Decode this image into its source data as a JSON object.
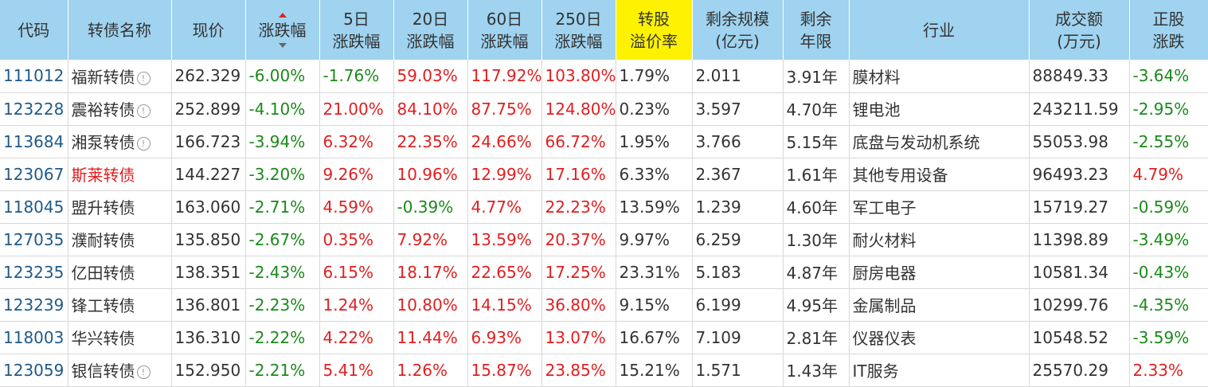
{
  "headers": {
    "code": "代码",
    "name": "转债名称",
    "price": "现价",
    "change": "涨跌幅",
    "d5": [
      "5日",
      "涨跌幅"
    ],
    "d20": [
      "20日",
      "涨跌幅"
    ],
    "d60": [
      "60日",
      "涨跌幅"
    ],
    "d250": [
      "250日",
      "涨跌幅"
    ],
    "premium": [
      "转股",
      "溢价率"
    ],
    "scale": [
      "剩余规模",
      "(亿元)"
    ],
    "years": [
      "剩余",
      "年限"
    ],
    "industry": "行业",
    "volume": [
      "成交额",
      "(万元)"
    ],
    "stock": [
      "正股",
      "涨跌"
    ]
  },
  "colors": {
    "header_bg": "#9fd3ef",
    "highlight": "#fff200",
    "up": "#e02020",
    "down": "#1a8a1a",
    "code": "#1f5a8a"
  },
  "rows": [
    {
      "code": "111012",
      "name": "福新转债",
      "info": true,
      "price": "262.329",
      "change": "-6.00%",
      "d5": "-1.76%",
      "d20": "59.03%",
      "d60": "117.92%",
      "d250": "103.80%",
      "premium": "1.79%",
      "scale": "2.011",
      "years": "3.91年",
      "industry": "膜材料",
      "volume": "88849.33",
      "stock": "-3.64%"
    },
    {
      "code": "123228",
      "name": "震裕转债",
      "info": true,
      "price": "252.899",
      "change": "-4.10%",
      "d5": "21.00%",
      "d20": "84.10%",
      "d60": "87.75%",
      "d250": "124.80%",
      "premium": "0.23%",
      "scale": "3.597",
      "years": "4.70年",
      "industry": "锂电池",
      "volume": "243211.59",
      "stock": "-2.95%"
    },
    {
      "code": "113684",
      "name": "湘泵转债",
      "info": true,
      "price": "166.723",
      "change": "-3.94%",
      "d5": "6.32%",
      "d20": "22.35%",
      "d60": "24.66%",
      "d250": "66.72%",
      "premium": "1.95%",
      "scale": "3.766",
      "years": "5.15年",
      "industry": "底盘与发动机系统",
      "volume": "55053.98",
      "stock": "-2.55%"
    },
    {
      "code": "123067",
      "name": "斯莱转债",
      "info": false,
      "red": true,
      "price": "144.227",
      "change": "-3.20%",
      "d5": "9.26%",
      "d20": "10.96%",
      "d60": "12.99%",
      "d250": "17.16%",
      "premium": "6.33%",
      "scale": "2.367",
      "years": "1.61年",
      "industry": "其他专用设备",
      "volume": "96493.23",
      "stock": "4.79%"
    },
    {
      "code": "118045",
      "name": "盟升转债",
      "info": false,
      "price": "163.060",
      "change": "-2.71%",
      "d5": "4.59%",
      "d20": "-0.39%",
      "d60": "4.77%",
      "d250": "22.23%",
      "premium": "13.59%",
      "scale": "1.239",
      "years": "4.60年",
      "industry": "军工电子",
      "volume": "15719.27",
      "stock": "-0.59%"
    },
    {
      "code": "127035",
      "name": "濮耐转债",
      "info": false,
      "price": "135.850",
      "change": "-2.67%",
      "d5": "0.35%",
      "d20": "7.92%",
      "d60": "13.59%",
      "d250": "20.37%",
      "premium": "9.97%",
      "scale": "6.259",
      "years": "1.30年",
      "industry": "耐火材料",
      "volume": "11398.89",
      "stock": "-3.49%"
    },
    {
      "code": "123235",
      "name": "亿田转债",
      "info": false,
      "price": "138.351",
      "change": "-2.43%",
      "d5": "6.15%",
      "d20": "18.17%",
      "d60": "22.65%",
      "d250": "17.25%",
      "premium": "23.31%",
      "scale": "5.183",
      "years": "4.87年",
      "industry": "厨房电器",
      "volume": "10581.34",
      "stock": "-0.43%"
    },
    {
      "code": "123239",
      "name": "锋工转债",
      "info": false,
      "price": "136.801",
      "change": "-2.23%",
      "d5": "1.24%",
      "d20": "10.80%",
      "d60": "14.15%",
      "d250": "36.80%",
      "premium": "9.15%",
      "scale": "6.199",
      "years": "4.95年",
      "industry": "金属制品",
      "volume": "10299.76",
      "stock": "-4.35%"
    },
    {
      "code": "118003",
      "name": "华兴转债",
      "info": false,
      "price": "136.310",
      "change": "-2.22%",
      "d5": "4.22%",
      "d20": "11.44%",
      "d60": "6.93%",
      "d250": "13.07%",
      "premium": "16.67%",
      "scale": "7.109",
      "years": "2.81年",
      "industry": "仪器仪表",
      "volume": "10548.52",
      "stock": "-3.59%"
    },
    {
      "code": "123059",
      "name": "银信转债",
      "info": true,
      "price": "152.950",
      "change": "-2.21%",
      "d5": "5.41%",
      "d20": "1.26%",
      "d60": "15.87%",
      "d250": "23.85%",
      "premium": "15.21%",
      "scale": "1.571",
      "years": "1.43年",
      "industry": "IT服务",
      "volume": "25570.29",
      "stock": "2.33%"
    }
  ]
}
